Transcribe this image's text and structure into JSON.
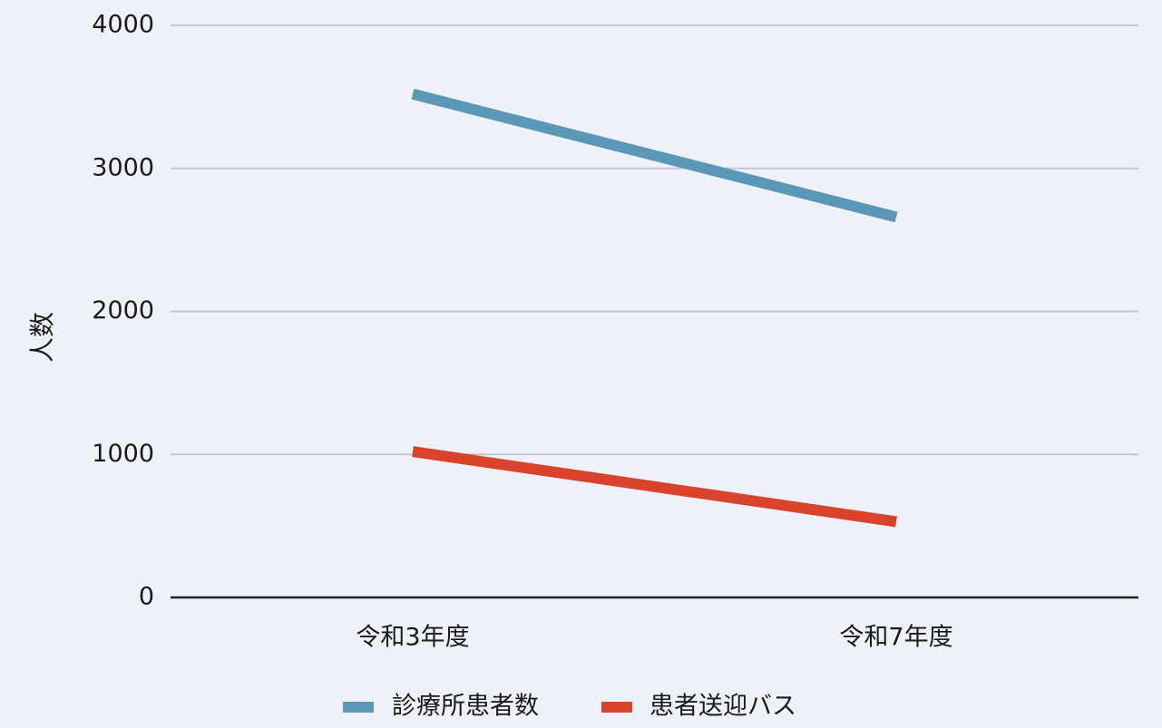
{
  "chart_data": {
    "type": "line",
    "title": "",
    "xlabel": "",
    "ylabel": "人数",
    "categories": [
      "令和3年度",
      "令和7年度"
    ],
    "ylim": [
      0,
      4000
    ],
    "yticks": [
      0,
      1000,
      2000,
      3000,
      4000
    ],
    "grid": true,
    "legend": "bottom",
    "series": [
      {
        "name": "診療所患者数",
        "values": [
          3520,
          2660
        ],
        "color": "#5b97b7"
      },
      {
        "name": "患者送迎バス",
        "values": [
          1020,
          530
        ],
        "color": "#d9432b"
      }
    ]
  }
}
